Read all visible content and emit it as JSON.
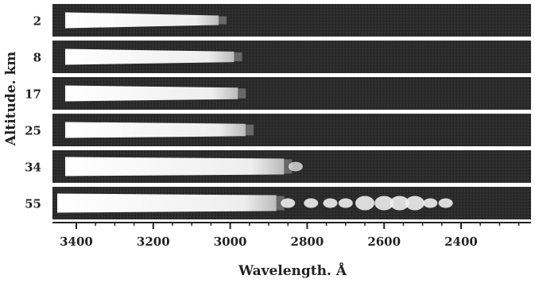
{
  "chart_data": {
    "type": "image-strips",
    "xlabel": "Wavelength. Å",
    "ylabel": "Altitude. km",
    "x_ticks": [
      3400,
      3200,
      3000,
      2800,
      2600,
      2400
    ],
    "x_range": [
      3440,
      2220
    ],
    "x_direction": "decreasing-left-to-right",
    "strip_color": "#2b2b2b",
    "emission_color": "#f2f2f2",
    "series": [
      {
        "altitude_km": 2,
        "label": "2",
        "cutoff_wavelength": 3030
      },
      {
        "altitude_km": 8,
        "label": "8",
        "cutoff_wavelength": 2990
      },
      {
        "altitude_km": 17,
        "label": "17",
        "cutoff_wavelength": 2980
      },
      {
        "altitude_km": 25,
        "label": "25",
        "cutoff_wavelength": 2960
      },
      {
        "altitude_km": 34,
        "label": "34",
        "cutoff_wavelength": 2860,
        "extra_features": [
          2830
        ]
      },
      {
        "altitude_km": 55,
        "label": "55",
        "cutoff_wavelength": 2880,
        "extra_features": [
          2850,
          2790,
          2740,
          2700,
          2650,
          2600,
          2560,
          2520,
          2480,
          2440
        ]
      }
    ]
  }
}
